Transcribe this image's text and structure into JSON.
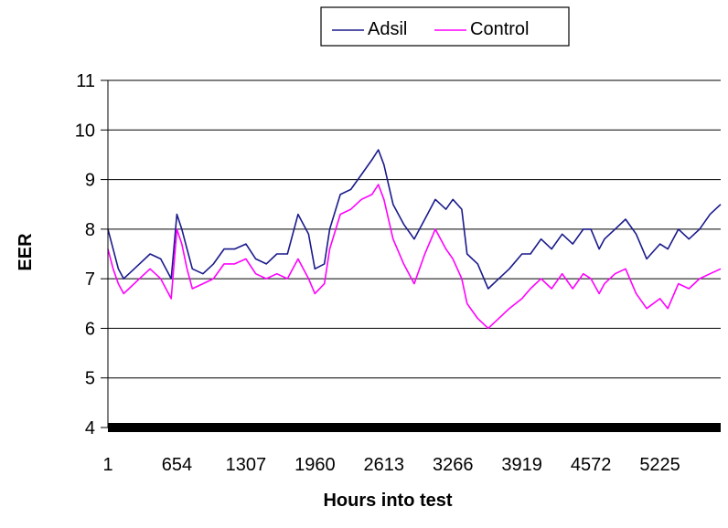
{
  "chart_data": {
    "type": "line",
    "title": "",
    "xlabel": "Hours into test",
    "ylabel": "EER",
    "ylim": [
      4,
      11
    ],
    "yticks": [
      4,
      5,
      6,
      7,
      8,
      9,
      10,
      11
    ],
    "xlim": [
      1,
      5800
    ],
    "xticks": [
      1,
      654,
      1307,
      1960,
      2613,
      3266,
      3919,
      4572,
      5225
    ],
    "grid": "horizontal",
    "legend_position": "top",
    "series": [
      {
        "name": "Adsil",
        "color": "#1a1a8c",
        "x": [
          1,
          50,
          100,
          150,
          200,
          300,
          400,
          500,
          600,
          654,
          700,
          750,
          800,
          900,
          1000,
          1100,
          1200,
          1307,
          1400,
          1500,
          1600,
          1700,
          1800,
          1900,
          1960,
          2050,
          2100,
          2200,
          2300,
          2400,
          2500,
          2560,
          2613,
          2700,
          2800,
          2900,
          3000,
          3100,
          3200,
          3266,
          3350,
          3400,
          3500,
          3600,
          3700,
          3800,
          3919,
          4000,
          4100,
          4200,
          4300,
          4400,
          4500,
          4572,
          4650,
          4700,
          4800,
          4900,
          5000,
          5100,
          5225,
          5300,
          5400,
          5500,
          5600,
          5700,
          5800
        ],
        "y": [
          8.0,
          7.6,
          7.2,
          7.0,
          7.1,
          7.3,
          7.5,
          7.4,
          7.0,
          8.3,
          8.0,
          7.6,
          7.2,
          7.1,
          7.3,
          7.6,
          7.6,
          7.7,
          7.4,
          7.3,
          7.5,
          7.5,
          8.3,
          7.9,
          7.2,
          7.3,
          8.0,
          8.7,
          8.8,
          9.1,
          9.4,
          9.6,
          9.3,
          8.5,
          8.1,
          7.8,
          8.2,
          8.6,
          8.4,
          8.6,
          8.4,
          7.5,
          7.3,
          6.8,
          7.0,
          7.2,
          7.5,
          7.5,
          7.8,
          7.6,
          7.9,
          7.7,
          8.0,
          8.0,
          7.6,
          7.8,
          8.0,
          8.2,
          7.9,
          7.4,
          7.7,
          7.6,
          8.0,
          7.8,
          8.0,
          8.3,
          8.5
        ]
      },
      {
        "name": "Control",
        "color": "#ff00ff",
        "x": [
          1,
          50,
          100,
          150,
          200,
          300,
          400,
          500,
          600,
          654,
          700,
          750,
          800,
          900,
          1000,
          1100,
          1200,
          1307,
          1400,
          1500,
          1600,
          1700,
          1800,
          1900,
          1960,
          2050,
          2100,
          2200,
          2300,
          2400,
          2500,
          2560,
          2613,
          2700,
          2800,
          2900,
          3000,
          3100,
          3200,
          3266,
          3350,
          3400,
          3500,
          3600,
          3700,
          3800,
          3919,
          4000,
          4100,
          4200,
          4300,
          4400,
          4500,
          4572,
          4650,
          4700,
          4800,
          4900,
          5000,
          5100,
          5225,
          5300,
          5400,
          5500,
          5600,
          5700,
          5800
        ],
        "y": [
          7.6,
          7.2,
          6.9,
          6.7,
          6.8,
          7.0,
          7.2,
          7.0,
          6.6,
          8.0,
          7.7,
          7.2,
          6.8,
          6.9,
          7.0,
          7.3,
          7.3,
          7.4,
          7.1,
          7.0,
          7.1,
          7.0,
          7.4,
          7.0,
          6.7,
          6.9,
          7.6,
          8.3,
          8.4,
          8.6,
          8.7,
          8.9,
          8.6,
          7.8,
          7.3,
          6.9,
          7.5,
          8.0,
          7.6,
          7.4,
          7.0,
          6.5,
          6.2,
          6.0,
          6.2,
          6.4,
          6.6,
          6.8,
          7.0,
          6.8,
          7.1,
          6.8,
          7.1,
          7.0,
          6.7,
          6.9,
          7.1,
          7.2,
          6.7,
          6.4,
          6.6,
          6.4,
          6.9,
          6.8,
          7.0,
          7.1,
          7.2
        ]
      }
    ]
  }
}
